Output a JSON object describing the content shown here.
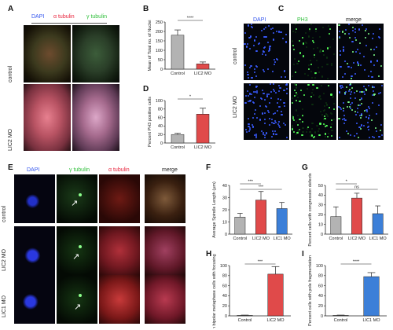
{
  "colors": {
    "dapi": "#3355ee",
    "alpha_tubulin": "#e8233c",
    "gamma_tubulin": "#2fbf3a",
    "control_bar": "#b3b3b3",
    "lic2_bar": "#e04a4a",
    "lic1_bar": "#3c7fd8",
    "edge": "#222222"
  },
  "panel_letters": [
    "A",
    "B",
    "C",
    "D",
    "E",
    "F",
    "G",
    "H",
    "I"
  ],
  "panelA": {
    "letter": "A",
    "header": {
      "dapi": "DAPI",
      "alpha": "α tubulin",
      "gamma": "γ tubulin"
    },
    "rows": [
      "control",
      "LIC2 MO"
    ]
  },
  "panelC": {
    "letter": "C",
    "headers": [
      "DAPI",
      "PH3",
      "merge"
    ],
    "rows": [
      "control",
      "LIC2 MO"
    ]
  },
  "panelE": {
    "letter": "E",
    "headers": [
      "DAPI",
      "γ tubulin",
      "α tubulin",
      "merge"
    ],
    "rows": [
      "control",
      "LIC2 MO",
      "LIC1 MO"
    ]
  },
  "chart_data": [
    {
      "panel": "B",
      "type": "bar",
      "categories": [
        "Control",
        "LIC2 MO"
      ],
      "values": [
        180,
        28
      ],
      "errors": [
        28,
        10
      ],
      "ylabel": "Mean of Total no. of Nuclei",
      "ylim": [
        0,
        250
      ],
      "yticks": [
        0,
        50,
        100,
        150,
        200,
        250
      ],
      "significance": [
        {
          "from": 0,
          "to": 1,
          "label": "****"
        }
      ]
    },
    {
      "panel": "D",
      "type": "bar",
      "categories": [
        "Control",
        "LIC2 MO"
      ],
      "values": [
        20,
        68
      ],
      "errors": [
        3,
        14
      ],
      "ylabel": "Percent PH3 positive cells",
      "ylim": [
        0,
        100
      ],
      "yticks": [
        0,
        20,
        40,
        60,
        80,
        100
      ],
      "significance": [
        {
          "from": 0,
          "to": 1,
          "label": "*"
        }
      ]
    },
    {
      "panel": "F",
      "type": "bar",
      "categories": [
        "Control",
        "LIC2 MO",
        "LIC1 MO"
      ],
      "values": [
        14,
        28,
        21
      ],
      "errors": [
        3,
        7,
        5
      ],
      "ylabel": "Average Spindle Length (µm)",
      "ylim": [
        0,
        40
      ],
      "yticks": [
        0,
        10,
        20,
        30,
        40
      ],
      "significance": [
        {
          "from": 0,
          "to": 1,
          "label": "***"
        },
        {
          "from": 0,
          "to": 2,
          "label": "***"
        }
      ]
    },
    {
      "panel": "G",
      "type": "bar",
      "categories": [
        "Control",
        "LIC2 MO",
        "LIC1 MO"
      ],
      "values": [
        18,
        37,
        21
      ],
      "errors": [
        10,
        5,
        8
      ],
      "ylabel": "Percent cells with congression defects",
      "ylim": [
        0,
        50
      ],
      "yticks": [
        0,
        10,
        20,
        30,
        40,
        50
      ],
      "significance": [
        {
          "from": 0,
          "to": 1,
          "label": "*"
        },
        {
          "from": 0,
          "to": 2,
          "label": "ns"
        }
      ]
    },
    {
      "panel": "H",
      "type": "bar",
      "categories": [
        "Control",
        "LIC2 MO"
      ],
      "values": [
        1,
        83
      ],
      "errors": [
        0.5,
        15
      ],
      "ylabel": "Fraction bipolar metaphase cells with focusing defects",
      "ylim": [
        0,
        100
      ],
      "yticks": [
        0,
        20,
        40,
        60,
        80,
        100
      ],
      "significance": [
        {
          "from": 0,
          "to": 1,
          "label": "***"
        }
      ]
    },
    {
      "panel": "I",
      "type": "bar",
      "categories": [
        "Control",
        "LIC1 MO"
      ],
      "values": [
        1,
        78
      ],
      "errors": [
        0.5,
        8
      ],
      "ylabel": "Percent cells with pole fragmentation",
      "ylim": [
        0,
        100
      ],
      "yticks": [
        0,
        20,
        40,
        60,
        80,
        100
      ],
      "significance": [
        {
          "from": 0,
          "to": 1,
          "label": "****"
        }
      ]
    }
  ]
}
